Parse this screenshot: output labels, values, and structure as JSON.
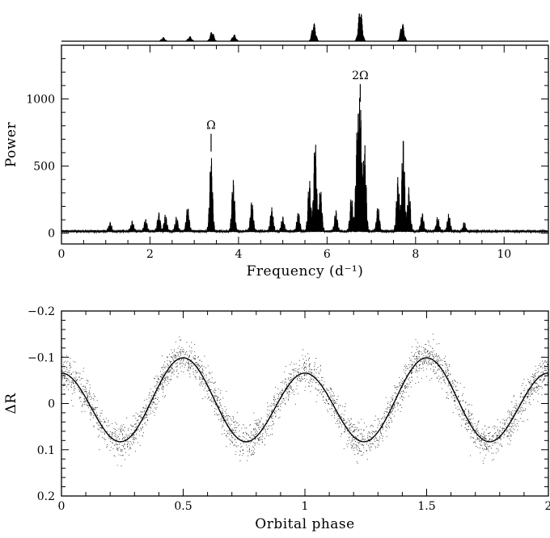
{
  "chart_data": [
    {
      "type": "line",
      "title": "",
      "xlabel": "Frequency (d⁻¹)",
      "ylabel": "Power",
      "xlim": [
        0,
        11
      ],
      "ylim": [
        -80,
        1400
      ],
      "xticks": [
        "0",
        "2",
        "4",
        "6",
        "8",
        "10"
      ],
      "yticks": [
        "0",
        "500",
        "1000"
      ],
      "grid": false,
      "annotations": [
        {
          "text": "Ω",
          "x": 3.38,
          "y": 560
        },
        {
          "text": "2Ω",
          "x": 6.75,
          "y": 930
        }
      ],
      "window_function_peaks": [
        {
          "x": 2.3,
          "y": 0.12
        },
        {
          "x": 2.9,
          "y": 0.15
        },
        {
          "x": 3.4,
          "y": 0.3
        },
        {
          "x": 3.9,
          "y": 0.2
        },
        {
          "x": 5.7,
          "y": 0.55
        },
        {
          "x": 6.75,
          "y": 1.0
        },
        {
          "x": 7.7,
          "y": 0.55
        }
      ],
      "series": [
        {
          "peaks": [
            {
              "x": 1.1,
              "y": 60
            },
            {
              "x": 1.6,
              "y": 70
            },
            {
              "x": 1.9,
              "y": 80
            },
            {
              "x": 2.2,
              "y": 130
            },
            {
              "x": 2.35,
              "y": 120
            },
            {
              "x": 2.6,
              "y": 100
            },
            {
              "x": 2.85,
              "y": 180
            },
            {
              "x": 3.38,
              "y": 560
            },
            {
              "x": 3.88,
              "y": 380
            },
            {
              "x": 4.3,
              "y": 220
            },
            {
              "x": 4.75,
              "y": 170
            },
            {
              "x": 5.0,
              "y": 100
            },
            {
              "x": 5.35,
              "y": 140
            },
            {
              "x": 5.6,
              "y": 380
            },
            {
              "x": 5.73,
              "y": 690
            },
            {
              "x": 5.85,
              "y": 320
            },
            {
              "x": 6.2,
              "y": 150
            },
            {
              "x": 6.55,
              "y": 260
            },
            {
              "x": 6.68,
              "y": 720
            },
            {
              "x": 6.75,
              "y": 930
            },
            {
              "x": 6.85,
              "y": 640
            },
            {
              "x": 7.15,
              "y": 180
            },
            {
              "x": 7.6,
              "y": 400
            },
            {
              "x": 7.72,
              "y": 700
            },
            {
              "x": 7.85,
              "y": 320
            },
            {
              "x": 8.15,
              "y": 130
            },
            {
              "x": 8.5,
              "y": 100
            },
            {
              "x": 8.75,
              "y": 120
            },
            {
              "x": 9.1,
              "y": 60
            }
          ]
        }
      ]
    },
    {
      "type": "scatter",
      "title": "",
      "xlabel": "Orbital phase",
      "ylabel": "ΔR",
      "xlim": [
        0,
        2
      ],
      "ylim": [
        0.2,
        -0.2
      ],
      "xticks": [
        "0",
        "0.5",
        "1",
        "1.5",
        "2"
      ],
      "yticks": [
        "−0.2",
        "−0.1",
        "0",
        "0.1",
        "0.2"
      ],
      "grid": false,
      "series": [
        {
          "name": "",
          "kind": "fit",
          "model": "ΔR = -0.0823·cos(4πφ) + 0.0165·cos(2πφ)",
          "x": [
            0,
            0.25,
            0.5,
            0.75,
            1.0,
            1.25,
            1.5,
            1.75,
            2.0
          ],
          "y": [
            -0.066,
            0.082,
            -0.099,
            0.082,
            -0.066,
            0.082,
            -0.099,
            0.082,
            -0.066
          ]
        },
        {
          "name": "",
          "kind": "observations",
          "n_points": 3200,
          "scatter_sigma": 0.018
        }
      ]
    }
  ]
}
